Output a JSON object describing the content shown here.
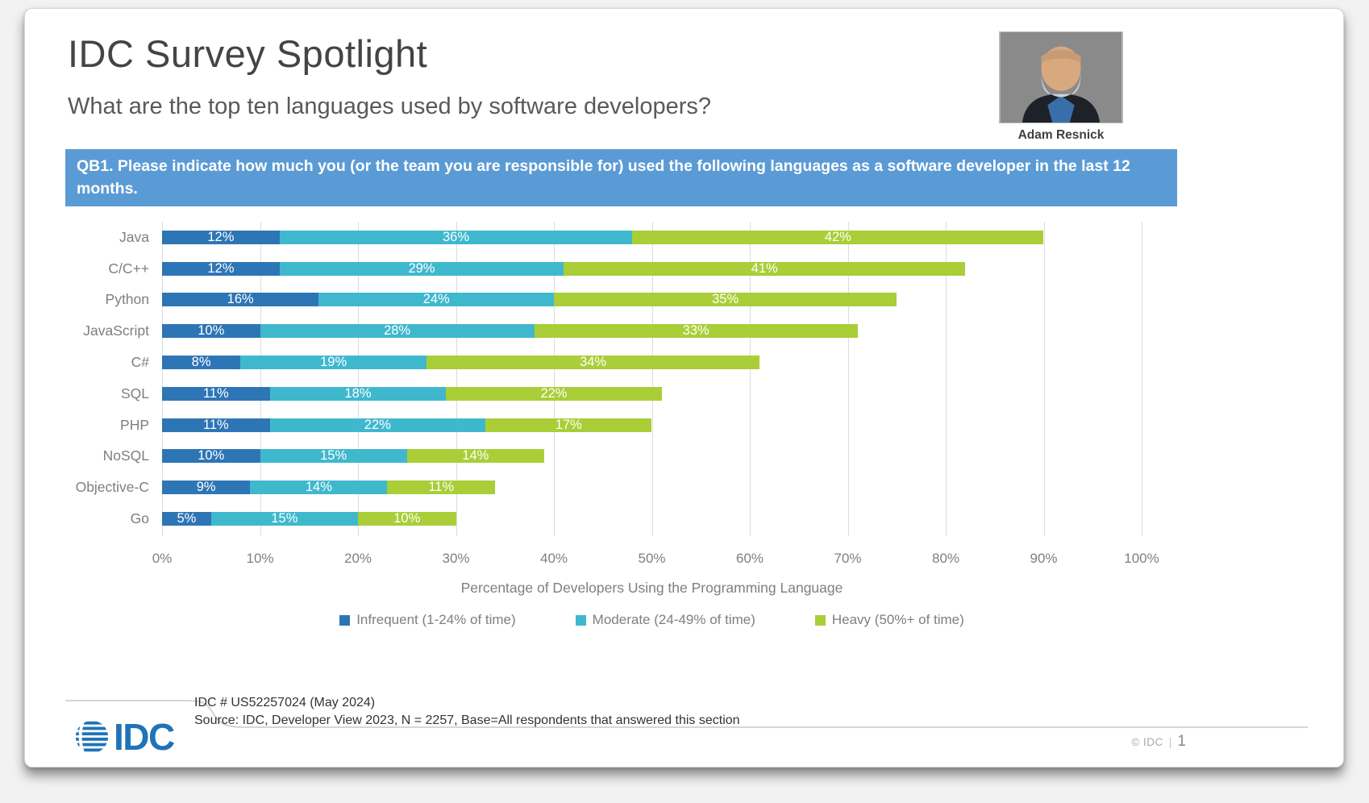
{
  "header": {
    "title": "IDC Survey Spotlight",
    "subtitle": "What are the top ten languages used by software developers?",
    "analyst_name": "Adam Resnick"
  },
  "question_banner": "QB1. Please indicate how much you (or the team you are responsible for) used the following languages as a software developer in the last 12 months.",
  "chart_data": {
    "type": "bar",
    "orientation": "horizontal",
    "stacked": true,
    "title": "",
    "categories": [
      "Java",
      "C/C++",
      "Python",
      "JavaScript",
      "C#",
      "SQL",
      "PHP",
      "NoSQL",
      "Objective-C",
      "Go"
    ],
    "series": [
      {
        "name": "Infrequent (1-24% of time)",
        "color": "#2E75B6",
        "values": [
          12,
          12,
          16,
          10,
          8,
          11,
          11,
          10,
          9,
          5
        ]
      },
      {
        "name": "Moderate (24-49% of time)",
        "color": "#3FB8CE",
        "values": [
          36,
          29,
          24,
          28,
          19,
          18,
          22,
          15,
          14,
          15
        ]
      },
      {
        "name": "Heavy (50%+ of time)",
        "color": "#A9CE37",
        "values": [
          42,
          41,
          35,
          33,
          34,
          22,
          17,
          14,
          11,
          10
        ]
      }
    ],
    "xlabel": "Percentage of Developers Using the Programming Language",
    "ylabel": "",
    "x_ticks": [
      "0%",
      "10%",
      "20%",
      "30%",
      "40%",
      "50%",
      "60%",
      "70%",
      "80%",
      "90%",
      "100%"
    ],
    "xlim": [
      0,
      100
    ],
    "grid": "vertical",
    "legend_position": "bottom",
    "value_labels": "inside-white"
  },
  "footer": {
    "doc_number": "IDC # US52257024 (May 2024)",
    "source": "Source: IDC, Developer View 2023, N = 2257, Base=All respondents that answered this section",
    "copyright": "© IDC",
    "divider": "|",
    "page_number": "1",
    "logo_text": "IDC"
  },
  "colors": {
    "banner_bg": "#5B9BD5",
    "title_text": "#444444",
    "subtitle_text": "#595959",
    "axis_text": "#7F7F7F",
    "gridline": "#DCDCDC",
    "logo_blue": "#2173B8"
  }
}
